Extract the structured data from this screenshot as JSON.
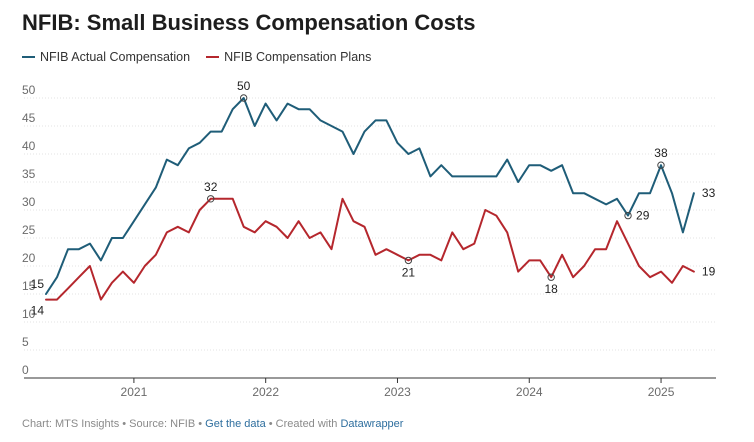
{
  "title": "NFIB: Small Business Compensation Costs",
  "chart_data": {
    "type": "line",
    "title": "NFIB: Small Business Compensation Costs",
    "xlabel": "",
    "ylabel": "",
    "ylim": [
      0,
      50
    ],
    "yticks": [
      0,
      5,
      10,
      15,
      20,
      25,
      30,
      35,
      40,
      45,
      50
    ],
    "xlim": [
      2020.333,
      2025.417
    ],
    "xticks": [
      {
        "label": "2021",
        "x": 2021.0
      },
      {
        "label": "2022",
        "x": 2022.0
      },
      {
        "label": "2023",
        "x": 2023.0
      },
      {
        "label": "2024",
        "x": 2024.0
      },
      {
        "label": "2025",
        "x": 2025.0
      }
    ],
    "x_start": 2020.333,
    "x_step": 0.08333,
    "grid": true,
    "legend_position": "top-left",
    "series": [
      {
        "name": "NFIB Actual Compensation",
        "color": "#1f5d78",
        "values": [
          15,
          18,
          23,
          23,
          24,
          21,
          25,
          25,
          28,
          31,
          34,
          39,
          38,
          41,
          42,
          44,
          44,
          48,
          50,
          45,
          49,
          46,
          49,
          48,
          48,
          46,
          45,
          44,
          40,
          44,
          46,
          46,
          42,
          40,
          41,
          36,
          38,
          36,
          36,
          36,
          36,
          36,
          39,
          35,
          38,
          38,
          37,
          38,
          33,
          33,
          32,
          31,
          32,
          29,
          33,
          33,
          38,
          33,
          26,
          33
        ]
      },
      {
        "name": "NFIB Compensation Plans",
        "color": "#b5272d",
        "values": [
          14,
          14,
          16,
          18,
          20,
          14,
          17,
          19,
          17,
          20,
          22,
          26,
          27,
          26,
          30,
          32,
          32,
          32,
          27,
          26,
          28,
          27,
          25,
          28,
          25,
          26,
          23,
          32,
          28,
          27,
          22,
          23,
          22,
          21,
          22,
          22,
          21,
          26,
          23,
          24,
          30,
          29,
          26,
          19,
          21,
          21,
          18,
          22,
          18,
          20,
          23,
          23,
          28,
          24,
          20,
          18,
          19,
          17,
          20,
          19
        ]
      }
    ],
    "annotations": [
      {
        "series": 0,
        "index": 0,
        "text": "15",
        "circle": false,
        "pos": "left"
      },
      {
        "series": 1,
        "index": 0,
        "text": "14",
        "circle": false,
        "pos": "left-below"
      },
      {
        "series": 0,
        "index": 18,
        "text": "50",
        "circle": true,
        "pos": "above"
      },
      {
        "series": 1,
        "index": 15,
        "text": "32",
        "circle": true,
        "pos": "above"
      },
      {
        "series": 1,
        "index": 33,
        "text": "21",
        "circle": true,
        "pos": "below"
      },
      {
        "series": 1,
        "index": 46,
        "text": "18",
        "circle": true,
        "pos": "below"
      },
      {
        "series": 0,
        "index": 53,
        "text": "29",
        "circle": true,
        "pos": "right"
      },
      {
        "series": 0,
        "index": 56,
        "text": "38",
        "circle": true,
        "pos": "above"
      },
      {
        "series": 0,
        "index": 59,
        "text": "33",
        "circle": false,
        "pos": "right"
      },
      {
        "series": 1,
        "index": 59,
        "text": "19",
        "circle": false,
        "pos": "right"
      }
    ]
  },
  "footer": {
    "source": "Chart: MTS Insights • Source: NFIB • ",
    "data_link": "Get the data",
    "created": " • Created with ",
    "tool_link": "Datawrapper"
  }
}
